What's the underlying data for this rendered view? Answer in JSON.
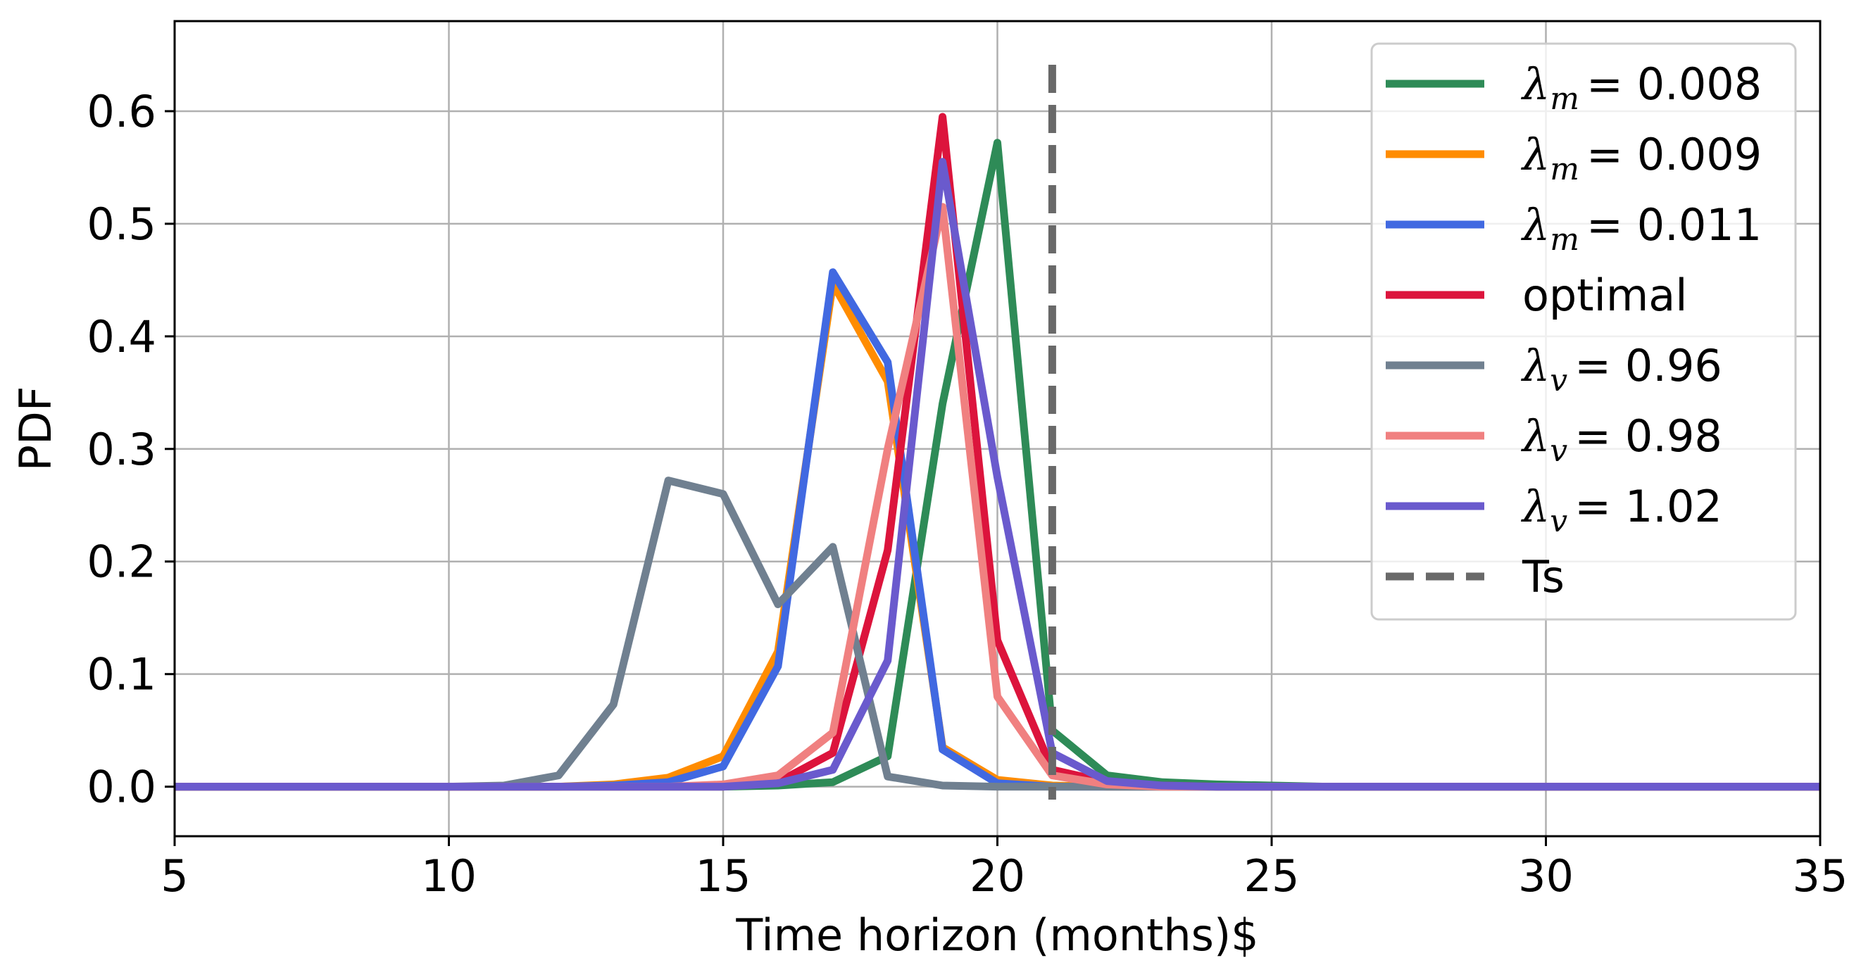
{
  "chart_data": {
    "type": "line",
    "title": "",
    "xlabel": "Time horizon (months)$",
    "ylabel": "PDF",
    "xlim": [
      5,
      35
    ],
    "ylim": [
      -0.044,
      0.68
    ],
    "x_ticks": [
      5,
      10,
      15,
      20,
      25,
      30,
      35
    ],
    "y_ticks": [
      0.0,
      0.1,
      0.2,
      0.3,
      0.4,
      0.5,
      0.6
    ],
    "x_tick_labels": [
      "5",
      "10",
      "15",
      "20",
      "25",
      "30",
      "35"
    ],
    "y_tick_labels": [
      "0.0",
      "0.1",
      "0.2",
      "0.3",
      "0.4",
      "0.5",
      "0.6"
    ],
    "grid": true,
    "legend_position": "top-right",
    "x": [
      5,
      6,
      7,
      8,
      9,
      10,
      11,
      12,
      13,
      14,
      15,
      16,
      17,
      18,
      19,
      20,
      21,
      22,
      23,
      24,
      25,
      26,
      27,
      28,
      29,
      30,
      31,
      32,
      33,
      34,
      35
    ],
    "series": [
      {
        "legend": {
          "symbol": "λ",
          "sub": "m",
          "value": "= 0.008"
        },
        "color": "#2e8b57",
        "values": [
          0,
          0,
          0,
          0,
          0,
          0,
          0,
          0,
          0,
          0,
          0,
          0.001,
          0.004,
          0.027,
          0.34,
          0.572,
          0.05,
          0.01,
          0.004,
          0.002,
          0.001,
          0,
          0,
          0,
          0,
          0,
          0,
          0,
          0,
          0,
          0
        ]
      },
      {
        "legend": {
          "symbol": "λ",
          "sub": "m",
          "value": "= 0.009"
        },
        "color": "#ff8c00",
        "values": [
          0,
          0,
          0,
          0,
          0,
          0,
          0,
          0,
          0.002,
          0.008,
          0.027,
          0.12,
          0.447,
          0.36,
          0.035,
          0.006,
          0.001,
          0,
          0,
          0,
          0,
          0,
          0,
          0,
          0,
          0,
          0,
          0,
          0,
          0,
          0
        ]
      },
      {
        "legend": {
          "symbol": "λ",
          "sub": "m",
          "value": "= 0.011"
        },
        "color": "#4169e1",
        "values": [
          0,
          0,
          0,
          0,
          0,
          0,
          0,
          0,
          0.001,
          0.004,
          0.018,
          0.107,
          0.457,
          0.377,
          0.033,
          0.003,
          0,
          0,
          0,
          0,
          0,
          0,
          0,
          0,
          0,
          0,
          0,
          0,
          0,
          0,
          0
        ]
      },
      {
        "legend": {
          "text": "optimal"
        },
        "color": "#dc143c",
        "values": [
          0,
          0,
          0,
          0,
          0,
          0,
          0,
          0,
          0,
          0,
          0,
          0.004,
          0.03,
          0.21,
          0.595,
          0.13,
          0.015,
          0.004,
          0.001,
          0,
          0,
          0,
          0,
          0,
          0,
          0,
          0,
          0,
          0,
          0,
          0
        ]
      },
      {
        "legend": {
          "symbol": "λ",
          "sub": "v",
          "value": "= 0.96"
        },
        "color": "#708090",
        "values": [
          0,
          0,
          0,
          0,
          0,
          0,
          0.001,
          0.01,
          0.073,
          0.272,
          0.26,
          0.162,
          0.213,
          0.009,
          0.001,
          0,
          0,
          0,
          0,
          0,
          0,
          0,
          0,
          0,
          0,
          0,
          0,
          0,
          0,
          0,
          0
        ]
      },
      {
        "legend": {
          "symbol": "λ",
          "sub": "v",
          "value": "= 0.98"
        },
        "color": "#f08080",
        "values": [
          0,
          0,
          0,
          0,
          0,
          0,
          0,
          0,
          0,
          0,
          0.002,
          0.01,
          0.048,
          0.3,
          0.515,
          0.08,
          0.01,
          0.002,
          0,
          0,
          0,
          0,
          0,
          0,
          0,
          0,
          0,
          0,
          0,
          0,
          0
        ]
      },
      {
        "legend": {
          "symbol": "λ",
          "sub": "v",
          "value": "= 1.02"
        },
        "color": "#6a5acd",
        "values": [
          0,
          0,
          0,
          0,
          0,
          0,
          0,
          0,
          0,
          0,
          0,
          0.003,
          0.015,
          0.112,
          0.555,
          0.275,
          0.03,
          0.005,
          0.001,
          0,
          0,
          0,
          0,
          0,
          0,
          0,
          0,
          0,
          0,
          0,
          0
        ]
      }
    ],
    "vline": {
      "label": "Ts",
      "x": 21,
      "color": "#696969",
      "style": "dashed"
    }
  }
}
